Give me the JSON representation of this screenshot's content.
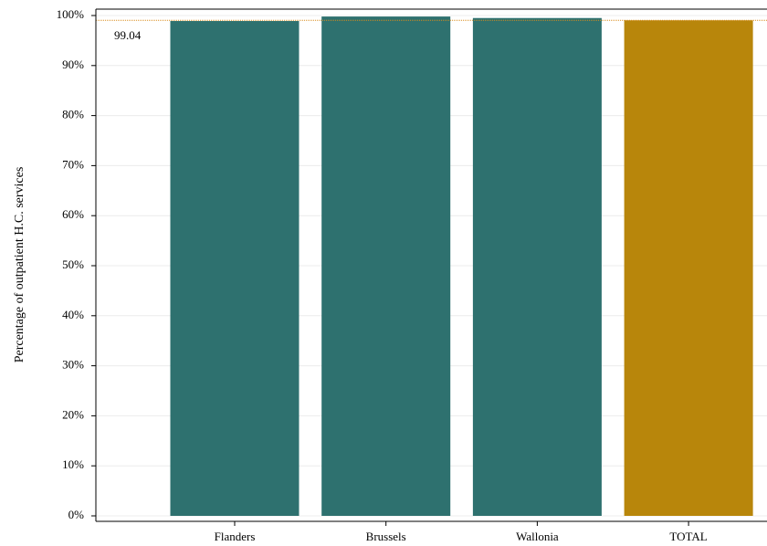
{
  "chart_data": {
    "type": "bar",
    "y_label": "Percentage of outpatient H.C. services",
    "categories": [
      "Flanders",
      "Brussels",
      "Wallonia",
      "TOTAL"
    ],
    "values": [
      98.9,
      99.8,
      99.5,
      99.04
    ],
    "colors": [
      "#2e716f",
      "#2e716f",
      "#2e716f",
      "#b8860b"
    ],
    "reference_line": 99.04,
    "reference_color": "#d98c1a",
    "ylim": [
      0,
      100
    ],
    "yticks": [
      {
        "value": 0,
        "label": "0%"
      },
      {
        "value": 10,
        "label": "10%"
      },
      {
        "value": 20,
        "label": "20%"
      },
      {
        "value": 30,
        "label": "30%"
      },
      {
        "value": 40,
        "label": "40%"
      },
      {
        "value": 50,
        "label": "50%"
      },
      {
        "value": 60,
        "label": "60%"
      },
      {
        "value": 70,
        "label": "70%"
      },
      {
        "value": 80,
        "label": "80%"
      },
      {
        "value": 90,
        "label": "90%"
      },
      {
        "value": 100,
        "label": "100%"
      }
    ],
    "grid": true
  }
}
